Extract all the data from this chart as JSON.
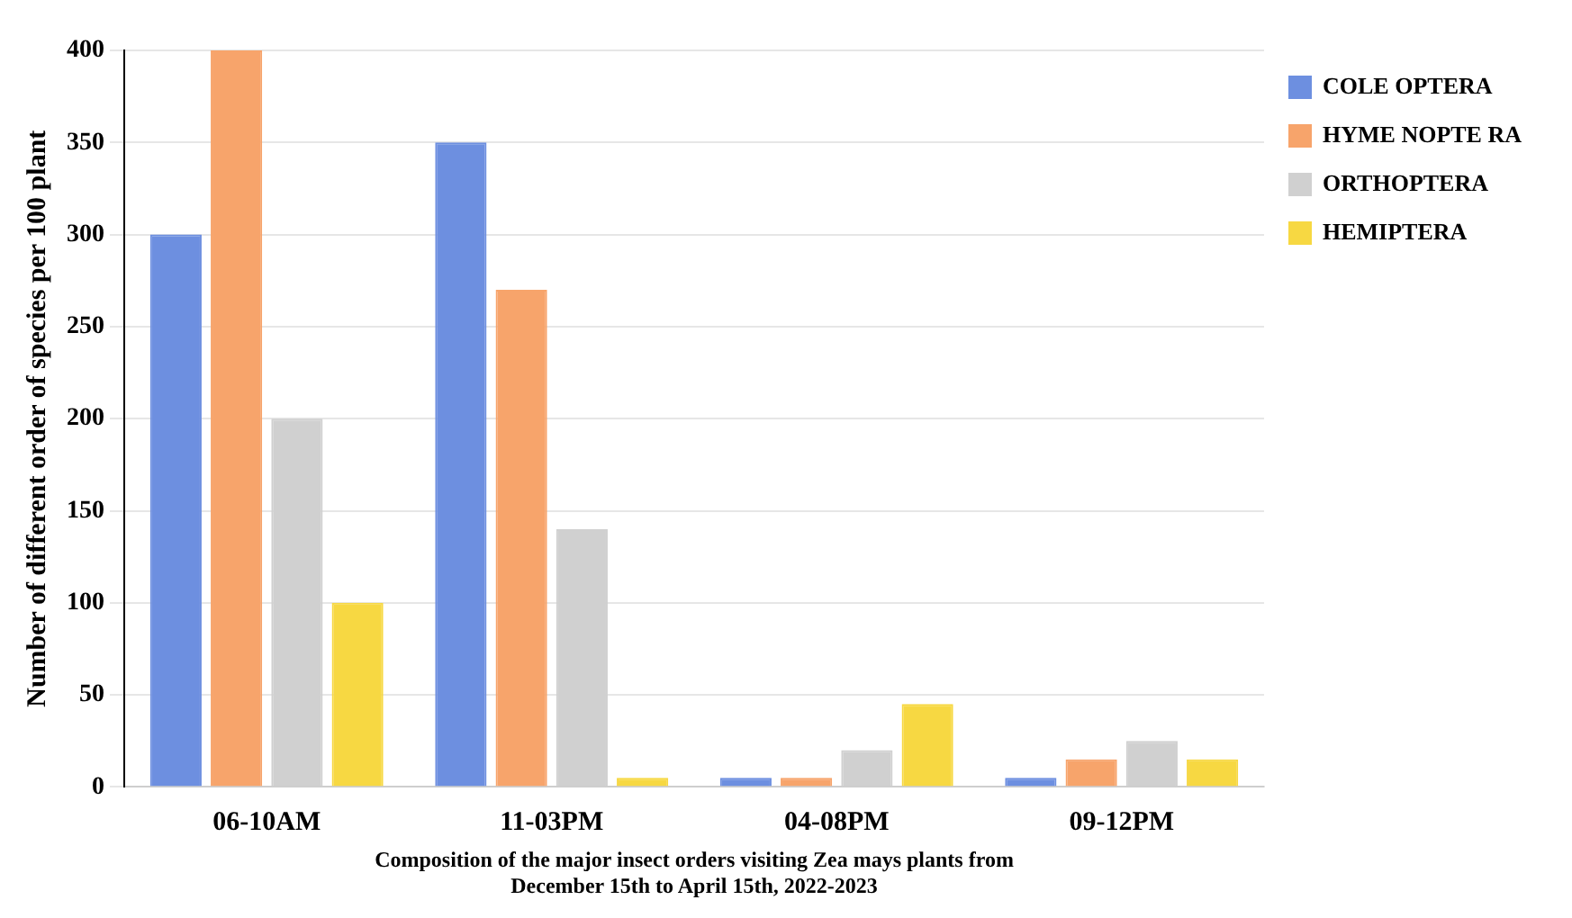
{
  "chart_data": {
    "type": "bar",
    "xlabel": "Composition of the major insect orders visiting Zea mays plants from\nDecember 15th to April 15th, 2022-2023",
    "ylabel": "Number of different order of species per 100 plant",
    "categories": [
      "06-10AM",
      "11-03PM",
      "04-08PM",
      "09-12PM"
    ],
    "series": [
      {
        "name": "COLE OPTERA",
        "color": "#6d8fe0",
        "values": [
          300,
          350,
          5,
          5
        ]
      },
      {
        "name": "HYME NOPTE RA",
        "color": "#f7a46b",
        "values": [
          400,
          270,
          5,
          15
        ]
      },
      {
        "name": "ORTHOPTERA",
        "color": "#d0d0d0",
        "values": [
          200,
          140,
          20,
          25
        ]
      },
      {
        "name": "HEMIPTERA",
        "color": "#f7d842",
        "values": [
          100,
          5,
          45,
          15
        ]
      }
    ],
    "ylim": [
      0,
      400
    ],
    "yticks": [
      0,
      50,
      100,
      150,
      200,
      250,
      300,
      350,
      400
    ],
    "grid": "y",
    "legend": "top right"
  }
}
